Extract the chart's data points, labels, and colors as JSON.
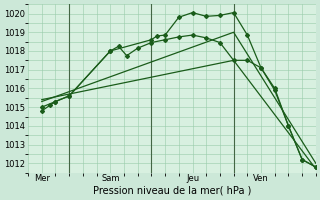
{
  "xlabel": "Pression niveau de la mer( hPa )",
  "background_color": "#cce8d8",
  "plot_bg_color": "#d8f0e0",
  "grid_color": "#99ccaa",
  "line_color": "#1a5c1a",
  "ylim": [
    1011.5,
    1020.5
  ],
  "yticks": [
    1012,
    1013,
    1014,
    1015,
    1016,
    1017,
    1018,
    1019,
    1020
  ],
  "xlim": [
    0,
    10.5
  ],
  "day_labels": [
    "Mer",
    "Sam",
    "Jeu",
    "Ven"
  ],
  "day_positions": [
    0.5,
    3.0,
    6.0,
    8.5
  ],
  "vlines": [
    1.5,
    4.5,
    7.5
  ],
  "vline_color": "#446644",
  "series": [
    {
      "x": [
        0.5,
        0.8,
        1.0,
        1.5,
        3.0,
        4.5,
        4.7,
        5.0,
        5.5,
        6.0,
        6.5,
        7.0,
        7.5,
        8.0,
        8.5,
        9.0,
        9.5,
        10.0,
        10.5
      ],
      "y": [
        1014.8,
        1015.1,
        1015.3,
        1015.6,
        1018.0,
        1018.6,
        1018.8,
        1018.85,
        1019.8,
        1020.05,
        1019.85,
        1019.9,
        1020.05,
        1018.85,
        1017.1,
        1016.0,
        1014.0,
        1012.2,
        1011.8
      ],
      "marker": "D",
      "markersize": 2.0
    },
    {
      "x": [
        0.5,
        1.0,
        1.5,
        3.0,
        3.3,
        3.6,
        4.0,
        4.5,
        5.0,
        5.5,
        6.0,
        6.5,
        7.0,
        7.5,
        8.0,
        8.5,
        9.0,
        9.5,
        10.0,
        10.5
      ],
      "y": [
        1015.0,
        1015.3,
        1015.6,
        1018.0,
        1018.25,
        1017.75,
        1018.15,
        1018.45,
        1018.6,
        1018.75,
        1018.85,
        1018.7,
        1018.45,
        1017.5,
        1017.5,
        1017.1,
        1015.9,
        1014.0,
        1012.2,
        1011.8
      ],
      "marker": "D",
      "markersize": 2.0
    },
    {
      "x": [
        0.5,
        7.5,
        10.5
      ],
      "y": [
        1015.3,
        1019.0,
        1012.0
      ],
      "marker": null,
      "markersize": 0
    },
    {
      "x": [
        0.5,
        7.5,
        10.5
      ],
      "y": [
        1015.4,
        1017.5,
        1011.7
      ],
      "marker": null,
      "markersize": 0
    }
  ]
}
